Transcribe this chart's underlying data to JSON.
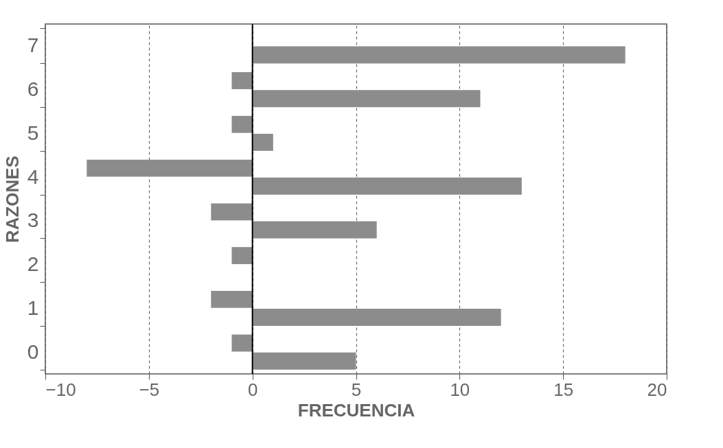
{
  "chart_data": {
    "type": "bar",
    "orientation": "horizontal",
    "xlabel": "FRECUENCIA",
    "ylabel": "RAZONES",
    "categories": [
      "7",
      "6",
      "5",
      "4",
      "3",
      "2",
      "1",
      "0"
    ],
    "series": [
      {
        "color": "#8c8c8c",
        "values": [
          null,
          -1,
          -1,
          -8,
          -2,
          -1,
          -2,
          -1
        ]
      },
      {
        "color": "#8c8c8c",
        "values": [
          18,
          11,
          1,
          13,
          6,
          null,
          12,
          5
        ]
      }
    ],
    "xlim": [
      -10,
      20
    ],
    "xticks": [
      -10,
      -5,
      0,
      5,
      10,
      15,
      20
    ],
    "grid": "x",
    "line_style": "dashed",
    "ref_lines": [
      {
        "axis": "x",
        "value": 0,
        "color": "#000000",
        "line_style": "solid"
      }
    ]
  }
}
